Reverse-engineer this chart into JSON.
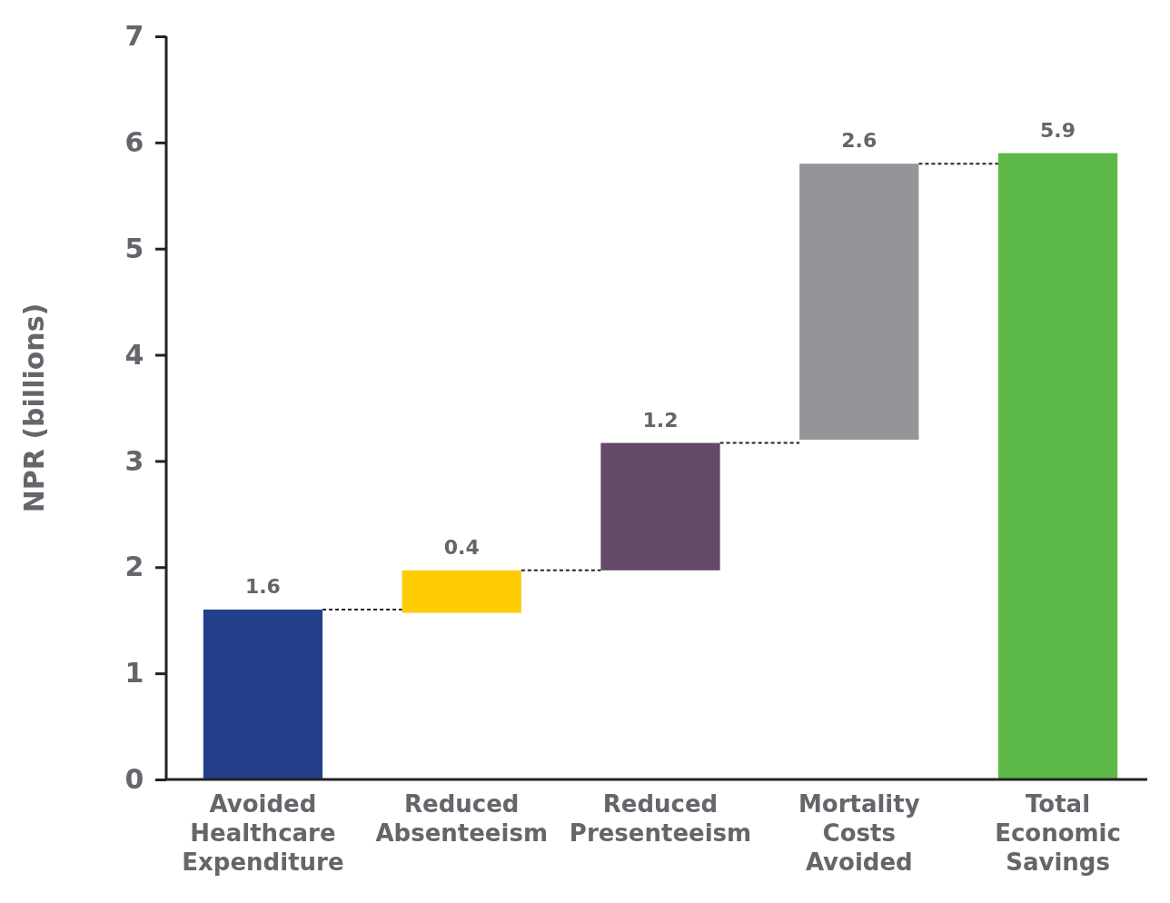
{
  "chart_data": {
    "type": "bar",
    "ylabel": "NPR (billions)",
    "categories": [
      "Avoided Healthcare Expenditure",
      "Reduced Absenteeism",
      "Reduced Presenteeism",
      "Mortality Costs Avoided",
      "Total Economic Savings"
    ],
    "values": [
      1.6,
      0.4,
      1.2,
      2.6,
      5.9
    ],
    "base": [
      0,
      1.57,
      1.97,
      3.2,
      0
    ],
    "colors": [
      "#233f8c",
      "#ffcb05",
      "#634a67",
      "#939598",
      "#5db947"
    ],
    "ylim": [
      0,
      7
    ],
    "yticks": [
      0,
      1,
      2,
      3,
      4,
      5,
      6,
      7
    ],
    "data_labels": true,
    "grid": false
  }
}
